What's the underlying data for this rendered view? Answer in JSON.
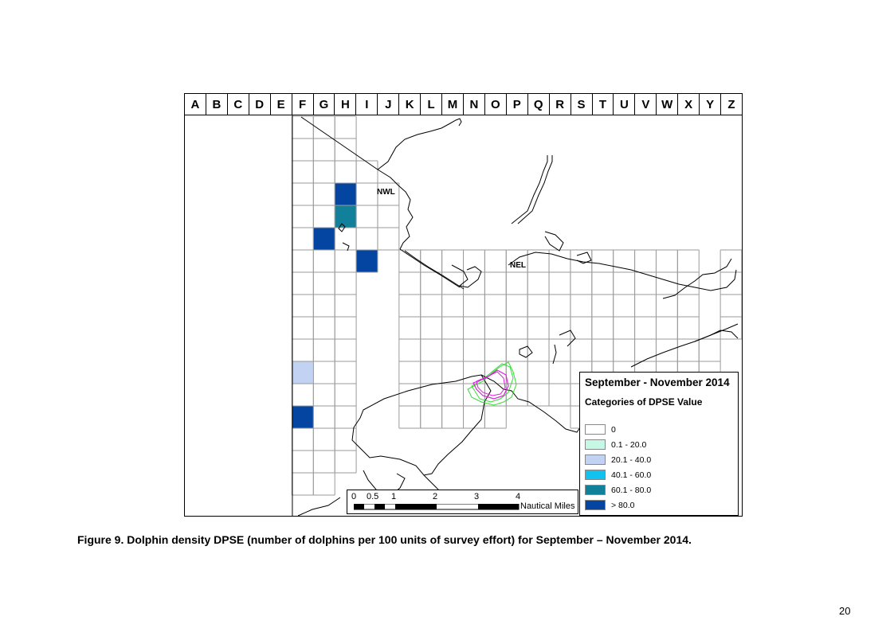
{
  "map": {
    "columns": [
      "A",
      "B",
      "C",
      "D",
      "E",
      "F",
      "G",
      "H",
      "I",
      "J",
      "K",
      "L",
      "M",
      "N",
      "O",
      "P",
      "Q",
      "R",
      "S",
      "T",
      "U",
      "V",
      "W",
      "X",
      "Y",
      "Z"
    ],
    "place_labels": {
      "nwl": "NWL",
      "nel": "NEL"
    },
    "shaded_cells": [
      {
        "column": "H",
        "row": 4,
        "category": "> 80.0"
      },
      {
        "column": "H",
        "row": 5,
        "category": "60.1 - 80.0"
      },
      {
        "column": "G",
        "row": 6,
        "category": "> 80.0"
      },
      {
        "column": "I",
        "row": 7,
        "category": "> 80.0"
      },
      {
        "column": "F",
        "row": 12,
        "category": "20.1 - 40.0"
      },
      {
        "column": "F",
        "row": 14,
        "category": "> 80.0"
      }
    ]
  },
  "legend": {
    "title": "September - November 2014",
    "subtitle": "Categories of DPSE Value",
    "items": [
      {
        "label": "0",
        "color": "#ffffff"
      },
      {
        "label": "0.1 - 20.0",
        "color": "#c6f8e6"
      },
      {
        "label": "20.1 - 40.0",
        "color": "#c2d2f3"
      },
      {
        "label": "40.1 - 60.0",
        "color": "#12c2ee"
      },
      {
        "label": "60.1 - 80.0",
        "color": "#11809b"
      },
      {
        "label": "> 80.0",
        "color": "#0345a1"
      }
    ]
  },
  "scalebar": {
    "ticks": [
      "0",
      "0.5",
      "1",
      "2",
      "3",
      "4"
    ],
    "unit": "Nautical Miles"
  },
  "caption": "Figure 9. Dolphin density DPSE (number of dolphins per 100 units of survey effort) for September – November 2014.",
  "page_number": "20"
}
